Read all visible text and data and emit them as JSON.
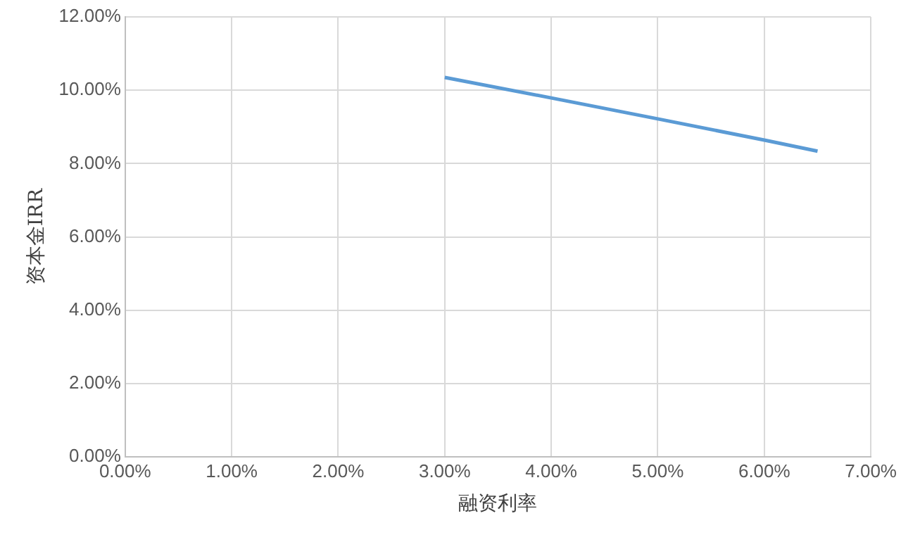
{
  "chart_data": {
    "type": "line",
    "xlabel": "融资利率",
    "ylabel": "资本金IRR",
    "x": [
      3,
      4,
      5,
      6,
      6.5
    ],
    "series": [
      {
        "color": "#5b9bd5",
        "values": [
          10.35,
          9.79,
          9.22,
          8.64,
          8.34
        ]
      }
    ],
    "xlim": [
      0,
      7
    ],
    "xticks": [
      {
        "value": 0,
        "label": "0.00%"
      },
      {
        "value": 1,
        "label": "1.00%"
      },
      {
        "value": 2,
        "label": "2.00%"
      },
      {
        "value": 3,
        "label": "3.00%"
      },
      {
        "value": 4,
        "label": "4.00%"
      },
      {
        "value": 5,
        "label": "5.00%"
      },
      {
        "value": 6,
        "label": "6.00%"
      },
      {
        "value": 7,
        "label": "7.00%"
      }
    ],
    "ylim": [
      0,
      12
    ],
    "yticks": [
      {
        "value": 0,
        "label": "0.00%"
      },
      {
        "value": 2,
        "label": "2.00%"
      },
      {
        "value": 4,
        "label": "4.00%"
      },
      {
        "value": 6,
        "label": "6.00%"
      },
      {
        "value": 8,
        "label": "8.00%"
      },
      {
        "value": 10,
        "label": "10.00%"
      },
      {
        "value": 12,
        "label": "12.00%"
      }
    ],
    "grid": true,
    "marker": "none",
    "line_style": "solid",
    "legend": false
  }
}
